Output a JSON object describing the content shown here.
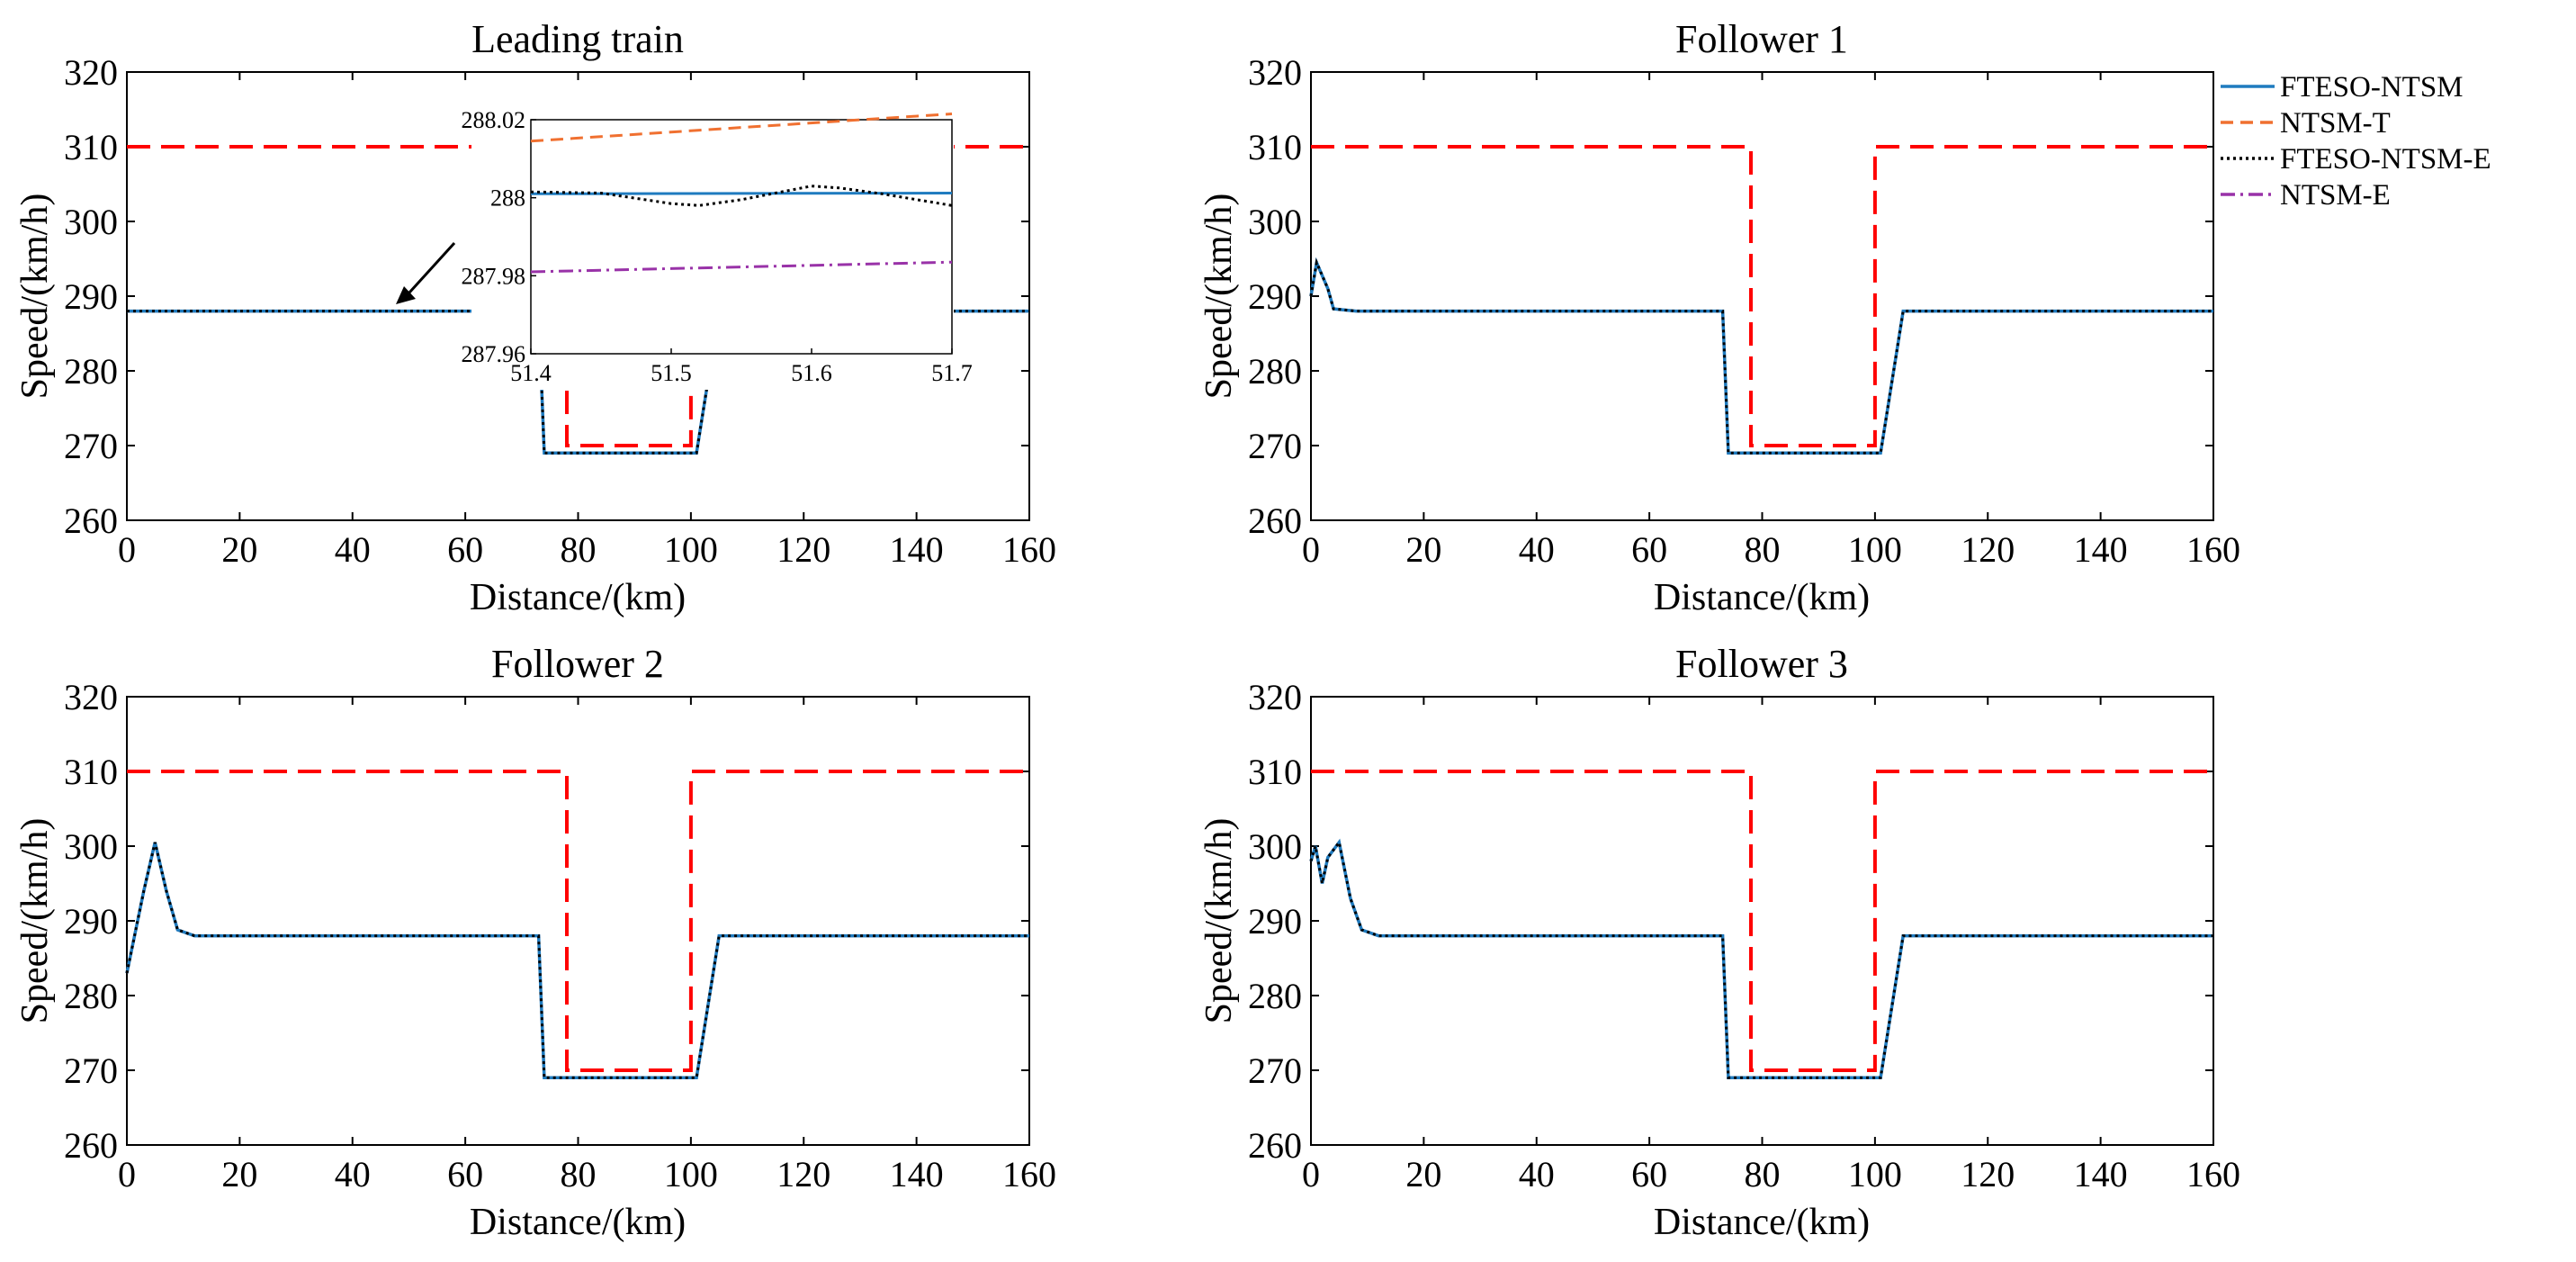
{
  "chart_data": {
    "type": "line",
    "x_range": [
      0,
      160
    ],
    "y_range": [
      260,
      320
    ],
    "x_ticks": [
      "0",
      "20",
      "40",
      "60",
      "80",
      "100",
      "120",
      "140",
      "160"
    ],
    "y_ticks": [
      "260",
      "270",
      "280",
      "290",
      "300",
      "310",
      "320"
    ],
    "xlabel": "Distance/(km)",
    "ylabel": "Speed/(km/h)",
    "colors": {
      "bound": "#ff0000",
      "ftesontsm": "#1f7bbf",
      "ntsmt": "#f07030",
      "ftesontsme": "#000000",
      "ntsme": "#9932a8"
    },
    "legend": [
      {
        "label": "FTESO-NTSM",
        "style": "solid",
        "color": "#1f7bbf"
      },
      {
        "label": "NTSM-T",
        "style": "dashed",
        "color": "#f07030"
      },
      {
        "label": "FTESO-NTSM-E",
        "style": "dotted",
        "color": "#000000"
      },
      {
        "label": "NTSM-E",
        "style": "dashdot",
        "color": "#9932a8"
      }
    ],
    "speed_limit": {
      "x": [
        0,
        78,
        78,
        100,
        100,
        160
      ],
      "y": [
        310,
        310,
        270,
        270,
        310,
        310
      ]
    },
    "panels": [
      {
        "title": "Leading train",
        "series": [
          {
            "name": "FTESO-NTSM",
            "x": [
              0,
              73,
              74,
              101,
              105,
              160
            ],
            "y": [
              288,
              288,
              269,
              269,
              288,
              288
            ]
          }
        ],
        "inset": {
          "x_range": [
            51.4,
            51.7
          ],
          "y_range": [
            287.96,
            288.02
          ],
          "x_ticks": [
            "51.4",
            "51.5",
            "51.6",
            "51.7"
          ],
          "y_ticks": [
            "287.96",
            "287.98",
            "288",
            "288.02"
          ],
          "series": [
            {
              "name": "FTESO-NTSM",
              "x": [
                51.4,
                51.7
              ],
              "y": [
                288.001,
                288.0012
              ]
            },
            {
              "name": "NTSM-T",
              "x": [
                51.4,
                51.7
              ],
              "y": [
                288.0145,
                288.0215
              ]
            },
            {
              "name": "FTESO-NTSM-E",
              "x": [
                51.4,
                51.45,
                51.5,
                51.52,
                51.55,
                51.6,
                51.62,
                51.65,
                51.7
              ],
              "y": [
                288.0015,
                288.0012,
                287.9985,
                287.998,
                287.9995,
                288.003,
                288.0025,
                288.001,
                287.998
              ]
            },
            {
              "name": "NTSM-E",
              "x": [
                51.4,
                51.7
              ],
              "y": [
                287.981,
                287.9835
              ]
            }
          ]
        }
      },
      {
        "title": "Follower 1",
        "series": [
          {
            "name": "FTESO-NTSM",
            "x": [
              0,
              1,
              3,
              4,
              8,
              73,
              74,
              101,
              105,
              160
            ],
            "y": [
              290,
              294.5,
              291,
              288.3,
              288,
              288,
              269,
              269,
              288,
              288
            ]
          }
        ]
      },
      {
        "title": "Follower 2",
        "series": [
          {
            "name": "FTESO-NTSM",
            "x": [
              0,
              3,
              5,
              7,
              9,
              12,
              73,
              74,
              101,
              105,
              160
            ],
            "y": [
              283,
              294,
              300.5,
              294,
              288.8,
              288,
              288,
              269,
              269,
              288,
              288
            ]
          }
        ]
      },
      {
        "title": "Follower 3",
        "series": [
          {
            "name": "FTESO-NTSM",
            "x": [
              0,
              0.8,
              2,
              3,
              5,
              7,
              9,
              12,
              73,
              74,
              101,
              105,
              160
            ],
            "y": [
              298,
              300,
              295,
              298.5,
              300.5,
              293,
              288.8,
              288,
              288,
              269,
              269,
              288,
              288
            ]
          }
        ]
      }
    ]
  }
}
